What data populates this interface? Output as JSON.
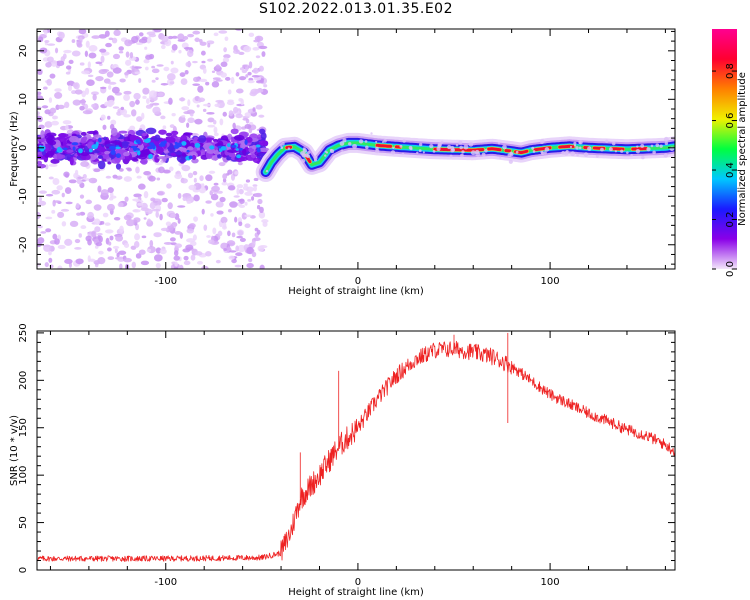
{
  "title": "S102.2022.013.01.35.E02",
  "chart_data": [
    {
      "type": "heatmap",
      "xlabel": "Height of straight line (km)",
      "ylabel": "Frequency (Hz)",
      "xlim": [
        -167,
        165
      ],
      "ylim": [
        -25,
        24.5
      ],
      "x_ticks": [
        -100,
        0,
        100
      ],
      "y_ticks": [
        -20,
        -10,
        0,
        10,
        20
      ],
      "colorbar": {
        "label": "Normalized spectral amplitude",
        "range": [
          0,
          0.97
        ],
        "ticks": [
          0.0,
          0.2,
          0.4,
          0.6,
          0.8
        ],
        "colormap": [
          "#f3e6fa",
          "#8a00e8",
          "#1a1aff",
          "#00c8ff",
          "#00ff40",
          "#f0f000",
          "#ff8000",
          "#ff0030",
          "#ff0090"
        ]
      },
      "ridge": {
        "noise_until_x": -48,
        "trace": [
          [
            -48,
            -5
          ],
          [
            -45,
            -3
          ],
          [
            -42,
            -1.5
          ],
          [
            -38,
            0
          ],
          [
            -33,
            0.2
          ],
          [
            -28,
            -1
          ],
          [
            -24,
            -3.5
          ],
          [
            -20,
            -3
          ],
          [
            -15,
            -0.5
          ],
          [
            -10,
            0.5
          ],
          [
            -5,
            1
          ],
          [
            0,
            1
          ],
          [
            10,
            0.5
          ],
          [
            20,
            0.2
          ],
          [
            40,
            -0.3
          ],
          [
            60,
            -0.5
          ],
          [
            70,
            -0.2
          ],
          [
            80,
            -0.7
          ],
          [
            85,
            -1
          ],
          [
            90,
            -0.5
          ],
          [
            100,
            0
          ],
          [
            110,
            0.3
          ],
          [
            120,
            0
          ],
          [
            140,
            -0.3
          ],
          [
            160,
            0
          ],
          [
            165,
            0.3
          ]
        ]
      }
    },
    {
      "type": "line",
      "xlabel": "Height of straight line (km)",
      "ylabel": "SNR (10 * v/v)",
      "xlim": [
        -167,
        165
      ],
      "ylim": [
        0,
        252
      ],
      "x_ticks": [
        -100,
        0,
        100
      ],
      "y_ticks": [
        0,
        50,
        100,
        150,
        200,
        250
      ],
      "color": "#ee2222",
      "series": [
        {
          "values_envelope": [
            [
              -167,
              12
            ],
            [
              -100,
              12
            ],
            [
              -50,
              13
            ],
            [
              -40,
              18
            ],
            [
              -35,
              40
            ],
            [
              -30,
              75
            ],
            [
              -20,
              100
            ],
            [
              -10,
              130
            ],
            [
              0,
              150
            ],
            [
              10,
              180
            ],
            [
              20,
              205
            ],
            [
              30,
              222
            ],
            [
              40,
              232
            ],
            [
              50,
              233
            ],
            [
              60,
              230
            ],
            [
              70,
              225
            ],
            [
              80,
              215
            ],
            [
              90,
              200
            ],
            [
              100,
              185
            ],
            [
              110,
              175
            ],
            [
              120,
              165
            ],
            [
              130,
              157
            ],
            [
              140,
              148
            ],
            [
              150,
              142
            ],
            [
              160,
              132
            ],
            [
              165,
              125
            ]
          ],
          "spikes": [
            [
              -30,
              124
            ],
            [
              -10,
              210
            ],
            [
              50,
              248
            ],
            [
              78,
              250
            ],
            [
              78,
              155
            ]
          ]
        }
      ]
    }
  ]
}
